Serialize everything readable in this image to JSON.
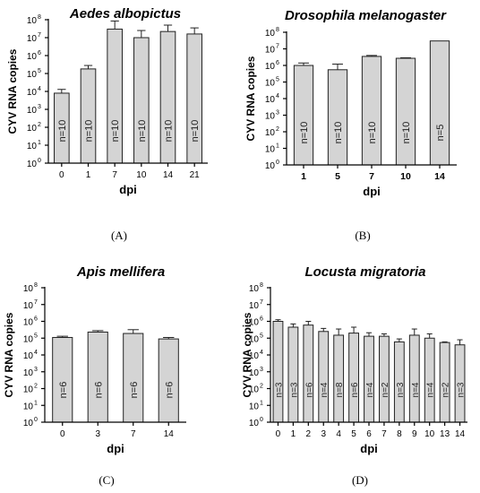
{
  "chart_data": [
    {
      "type": "bar",
      "panel_label": "(A)",
      "title": "Aedes albopictus",
      "xlabel": "dpi",
      "ylabel": "CYV RNA copies",
      "yscale": "log",
      "ylim": [
        1,
        100000000
      ],
      "ytick_base": "10",
      "ytick_exponents": [
        "0",
        "1",
        "2",
        "3",
        "4",
        "5",
        "6",
        "7",
        "8"
      ],
      "categories": [
        "0",
        "1",
        "7",
        "10",
        "14",
        "21"
      ],
      "values": [
        8000,
        180000,
        30000000,
        10000000,
        22000000,
        16000000
      ],
      "error_upper": [
        13000,
        280000,
        85000000,
        25000000,
        50000000,
        35000000
      ],
      "n_labels": [
        "n=10",
        "n=10",
        "n=10",
        "n=10",
        "n=10",
        "n=10"
      ],
      "bold_ticks": false
    },
    {
      "type": "bar",
      "panel_label": "(B)",
      "title": "Drosophila melanogaster",
      "xlabel": "dpi",
      "ylabel": "CYV RNA copies",
      "yscale": "log",
      "ylim": [
        1,
        100000000
      ],
      "ytick_base": "10",
      "ytick_exponents": [
        "0",
        "1",
        "2",
        "3",
        "4",
        "5",
        "6",
        "7",
        "8"
      ],
      "categories": [
        "1",
        "5",
        "7",
        "10",
        "14"
      ],
      "values": [
        1000000,
        550000,
        3500000,
        2700000,
        30000000
      ],
      "error_upper": [
        1400000,
        1200000,
        4000000,
        2900000,
        30000000
      ],
      "n_labels": [
        "n=10",
        "n=10",
        "n=10",
        "n=10",
        "n=5"
      ],
      "bold_ticks": true
    },
    {
      "type": "bar",
      "panel_label": "(C)",
      "title": "Apis mellifera",
      "xlabel": "dpi",
      "ylabel": "CYV RNA copies",
      "yscale": "log",
      "ylim": [
        1,
        100000000
      ],
      "ytick_base": "10",
      "ytick_exponents": [
        "0",
        "1",
        "2",
        "3",
        "4",
        "5",
        "6",
        "7",
        "8"
      ],
      "categories": [
        "0",
        "3",
        "7",
        "14"
      ],
      "values": [
        110000,
        230000,
        190000,
        90000
      ],
      "error_upper": [
        130000,
        280000,
        320000,
        110000
      ],
      "n_labels": [
        "n=6",
        "n=6",
        "n=6",
        "n=6"
      ],
      "bold_ticks": false
    },
    {
      "type": "bar",
      "panel_label": "(D)",
      "title": "Locusta migratoria",
      "xlabel": "dpi",
      "ylabel": "CYV RNA copies",
      "yscale": "log",
      "ylim": [
        1,
        100000000
      ],
      "ytick_base": "10",
      "ytick_exponents": [
        "0",
        "1",
        "2",
        "3",
        "4",
        "5",
        "6",
        "7",
        "8"
      ],
      "categories": [
        "0",
        "1",
        "2",
        "3",
        "4",
        "5",
        "6",
        "7",
        "8",
        "9",
        "10",
        "13",
        "14"
      ],
      "values": [
        1000000,
        450000,
        600000,
        250000,
        150000,
        200000,
        130000,
        130000,
        60000,
        150000,
        100000,
        55000,
        40000
      ],
      "error_upper": [
        1250000,
        700000,
        1000000,
        380000,
        350000,
        450000,
        210000,
        180000,
        90000,
        350000,
        180000,
        60000,
        80000
      ],
      "n_labels": [
        "n=3",
        "n=3",
        "n=6",
        "n=4",
        "n=8",
        "n=6",
        "n=4",
        "n=2",
        "n=3",
        "n=4",
        "n=4",
        "n=2",
        "n=3"
      ],
      "bold_ticks": false
    }
  ]
}
